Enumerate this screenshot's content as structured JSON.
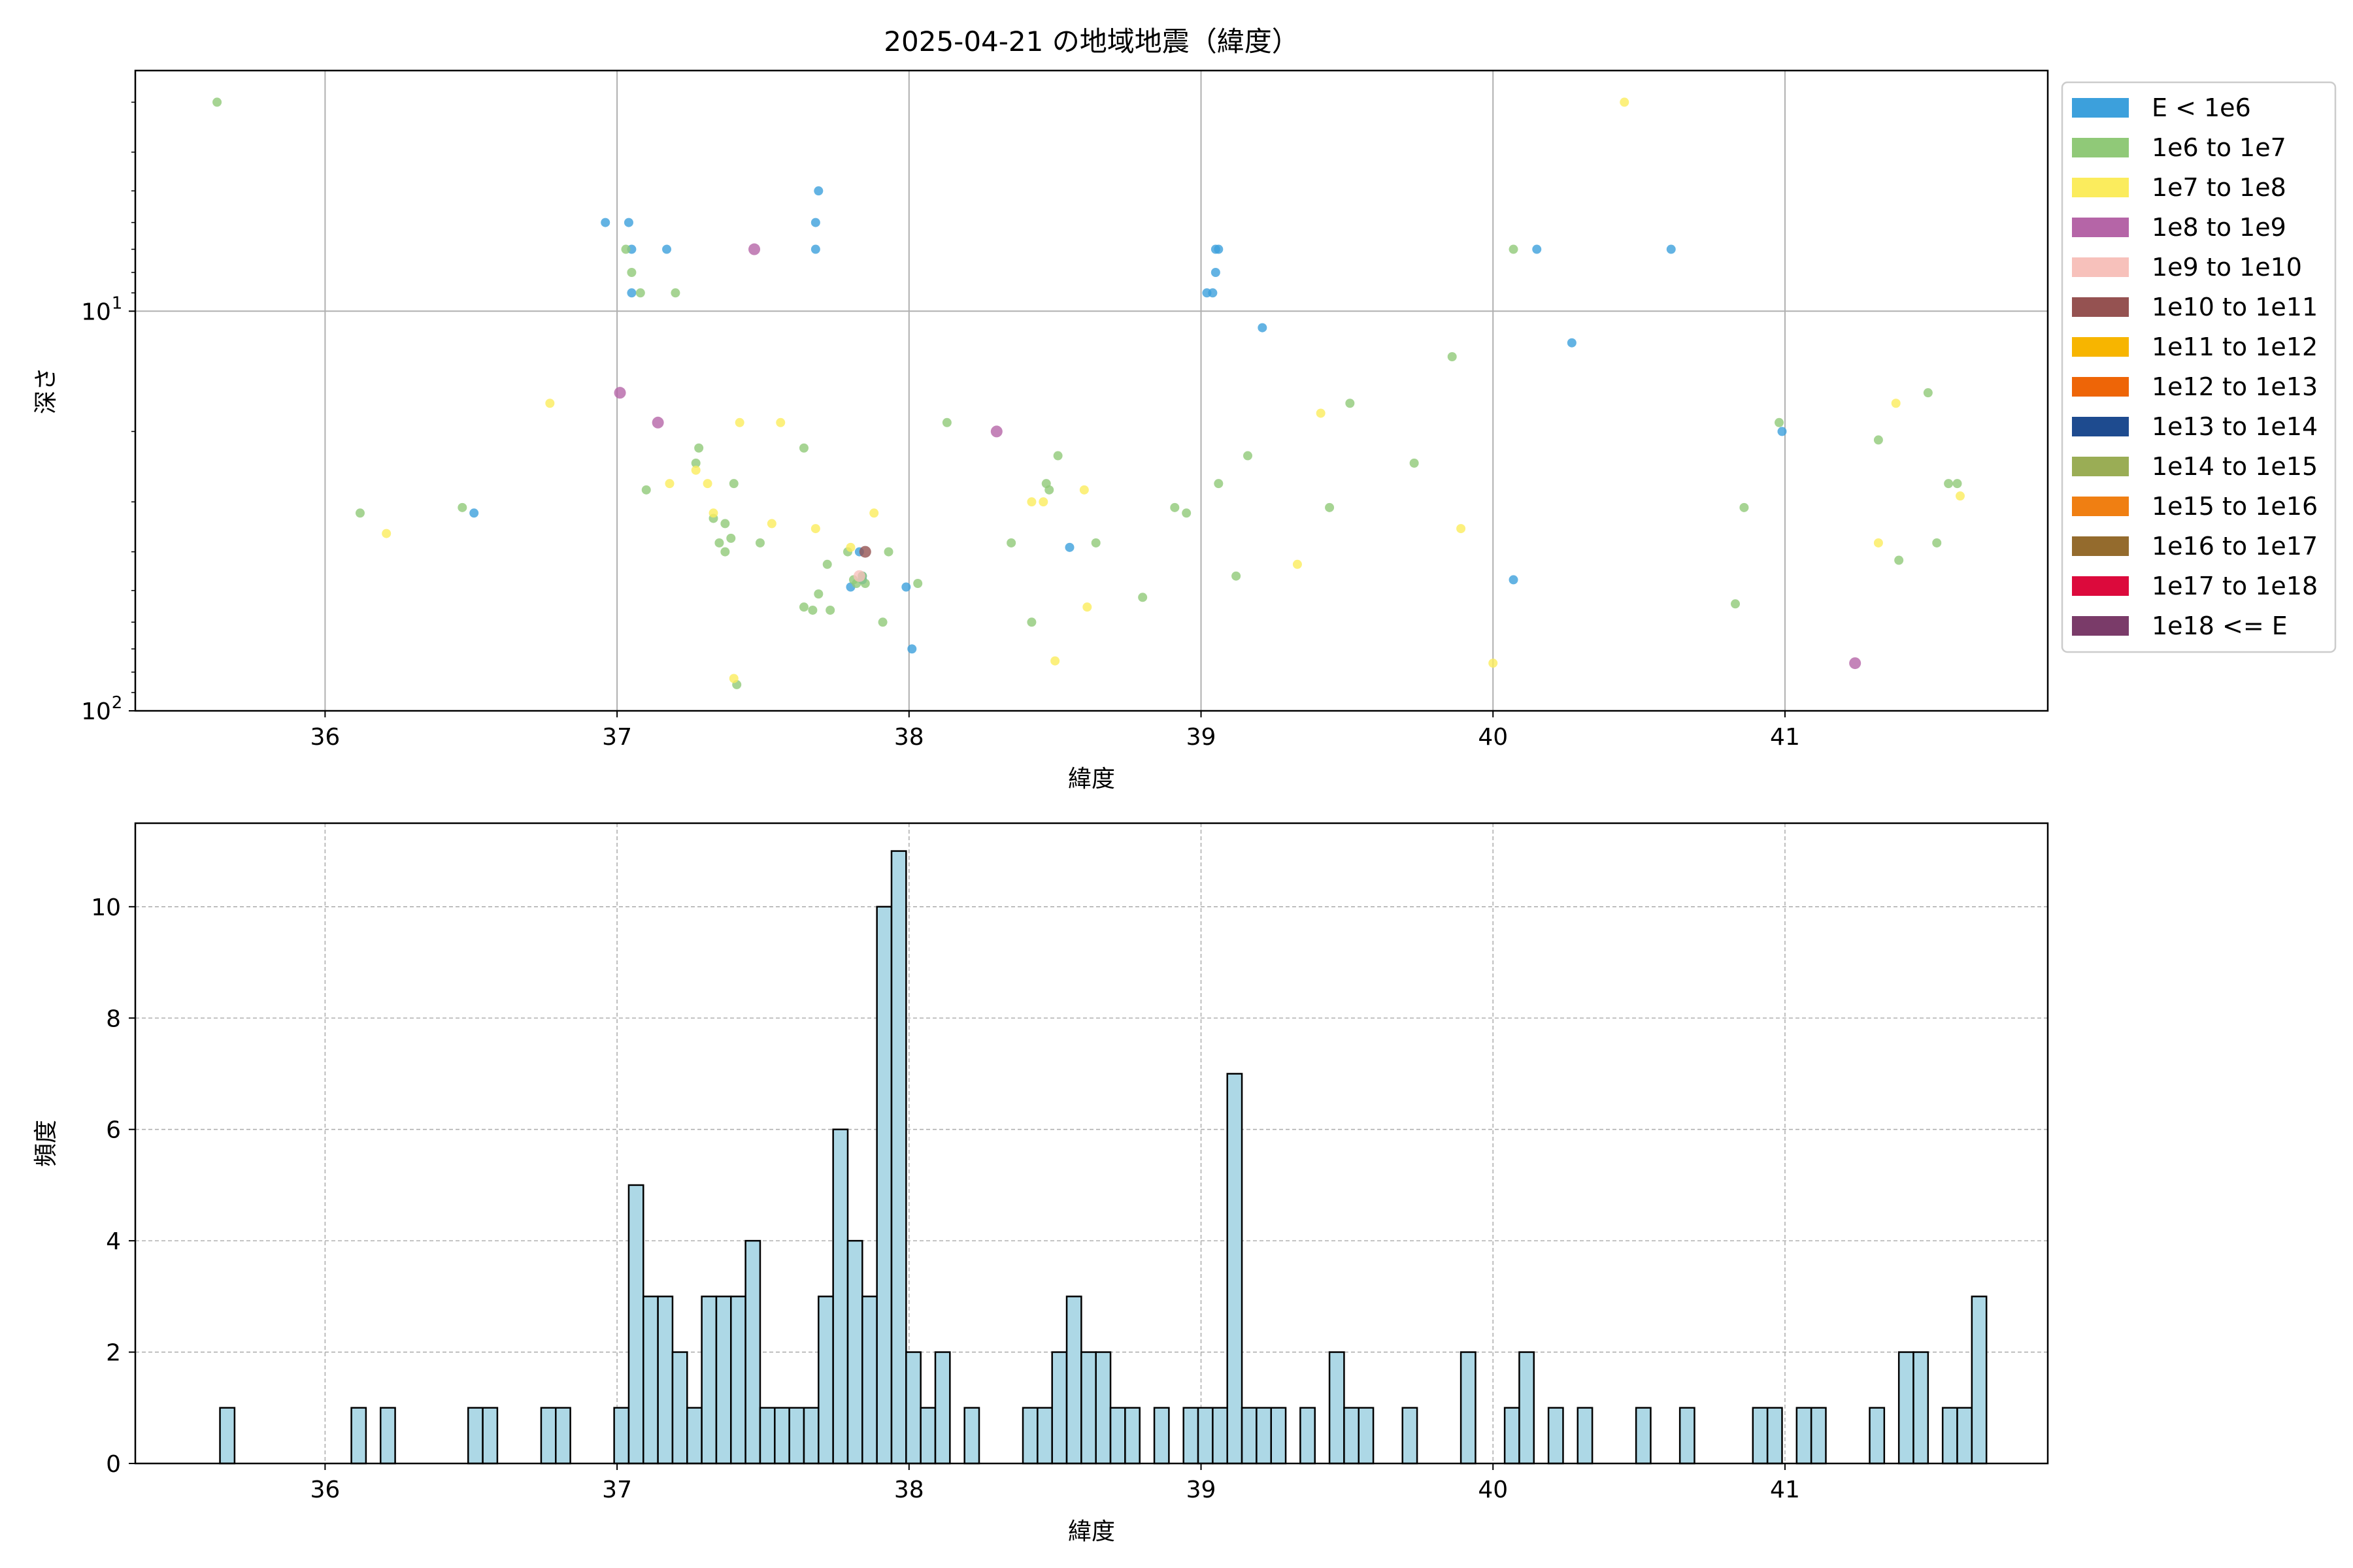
{
  "figure": {
    "title": "2025-04-21 の地域地震（緯度）"
  },
  "chart_data": [
    {
      "type": "scatter",
      "title": "2025-04-21 の地域地震（緯度）",
      "xlabel": "緯度",
      "ylabel": "深さ",
      "x_scale": "linear",
      "y_scale": "log",
      "y_inverted": true,
      "xlim": [
        35.35,
        41.9
      ],
      "ylim": [
        100,
        2.5
      ],
      "x_ticks": [
        36,
        37,
        38,
        39,
        40,
        41
      ],
      "y_ticks": [
        {
          "value": 10,
          "label": "10^1"
        },
        {
          "value": 100,
          "label": "10^2"
        }
      ],
      "grid": true,
      "legend_position": "outside-right",
      "legend": [
        {
          "label": "E < 1e6",
          "color": "#3ca0dc"
        },
        {
          "label": "1e6 to 1e7",
          "color": "#90c978"
        },
        {
          "label": "1e7 to 1e8",
          "color": "#fbec5d"
        },
        {
          "label": "1e8 to 1e9",
          "color": "#b565a7"
        },
        {
          "label": "1e9 to 1e10",
          "color": "#f7c1bb"
        },
        {
          "label": "1e10 to 1e11",
          "color": "#955251"
        },
        {
          "label": "1e11 to 1e12",
          "color": "#f7b500"
        },
        {
          "label": "1e12 to 1e13",
          "color": "#ee6507"
        },
        {
          "label": "1e13 to 1e14",
          "color": "#1e4b8f"
        },
        {
          "label": "1e14 to 1e15",
          "color": "#9aad55"
        },
        {
          "label": "1e15 to 1e16",
          "color": "#f07f12"
        },
        {
          "label": "1e16 to 1e17",
          "color": "#946b2d"
        },
        {
          "label": "1e17 to 1e18",
          "color": "#dc0a3c"
        },
        {
          "label": "1e18 <= E",
          "color": "#7a3b69"
        }
      ],
      "series": [
        {
          "class": 0,
          "points": [
            [
              36.96,
              6
            ],
            [
              37.04,
              6
            ],
            [
              37.05,
              7
            ],
            [
              37.05,
              9
            ],
            [
              37.17,
              7
            ],
            [
              36.51,
              32
            ],
            [
              37.69,
              5
            ],
            [
              37.68,
              6
            ],
            [
              37.68,
              7
            ],
            [
              37.83,
              40
            ],
            [
              37.84,
              46
            ],
            [
              37.84,
              47
            ],
            [
              37.8,
              49
            ],
            [
              37.99,
              49
            ],
            [
              38.01,
              70
            ],
            [
              38.55,
              39
            ],
            [
              39.02,
              9
            ],
            [
              39.04,
              9
            ],
            [
              39.05,
              7
            ],
            [
              39.06,
              7
            ],
            [
              39.05,
              8
            ],
            [
              39.21,
              11
            ],
            [
              40.07,
              47
            ],
            [
              40.15,
              7
            ],
            [
              40.27,
              12
            ],
            [
              40.61,
              7
            ],
            [
              40.99,
              20
            ]
          ]
        },
        {
          "class": 1,
          "points": [
            [
              35.63,
              3
            ],
            [
              37.03,
              7
            ],
            [
              37.05,
              8
            ],
            [
              37.08,
              9
            ],
            [
              37.2,
              9
            ],
            [
              37.1,
              28
            ],
            [
              37.28,
              22
            ],
            [
              37.27,
              24
            ],
            [
              37.33,
              33
            ],
            [
              37.35,
              38
            ],
            [
              37.37,
              34
            ],
            [
              37.37,
              40
            ],
            [
              37.39,
              37
            ],
            [
              37.4,
              27
            ],
            [
              37.41,
              86
            ],
            [
              37.49,
              38
            ],
            [
              37.64,
              22
            ],
            [
              37.64,
              55
            ],
            [
              37.67,
              56
            ],
            [
              37.69,
              51
            ],
            [
              37.72,
              43
            ],
            [
              37.73,
              56
            ],
            [
              37.79,
              40
            ],
            [
              37.81,
              47
            ],
            [
              37.82,
              48
            ],
            [
              37.84,
              46
            ],
            [
              37.85,
              48
            ],
            [
              37.91,
              60
            ],
            [
              37.93,
              40
            ],
            [
              38.03,
              48
            ],
            [
              38.13,
              19
            ],
            [
              38.35,
              38
            ],
            [
              38.42,
              60
            ],
            [
              38.47,
              27
            ],
            [
              38.48,
              28
            ],
            [
              38.51,
              23
            ],
            [
              38.64,
              38
            ],
            [
              38.8,
              52
            ],
            [
              38.91,
              31
            ],
            [
              38.95,
              32
            ],
            [
              39.06,
              27
            ],
            [
              39.12,
              46
            ],
            [
              39.16,
              23
            ],
            [
              39.44,
              31
            ],
            [
              39.51,
              17
            ],
            [
              39.73,
              24
            ],
            [
              39.86,
              13
            ],
            [
              40.07,
              7
            ],
            [
              40.83,
              54
            ],
            [
              40.86,
              31
            ],
            [
              40.98,
              19
            ],
            [
              41.32,
              21
            ],
            [
              41.39,
              42
            ],
            [
              41.49,
              16
            ],
            [
              41.52,
              38
            ],
            [
              41.56,
              27
            ],
            [
              41.59,
              27
            ],
            [
              36.12,
              32
            ],
            [
              36.47,
              31
            ]
          ]
        },
        {
          "class": 2,
          "points": [
            [
              36.21,
              36
            ],
            [
              36.77,
              17
            ],
            [
              37.18,
              27
            ],
            [
              37.27,
              25
            ],
            [
              37.31,
              27
            ],
            [
              37.33,
              32
            ],
            [
              37.42,
              19
            ],
            [
              37.4,
              83
            ],
            [
              37.56,
              19
            ],
            [
              37.53,
              34
            ],
            [
              37.68,
              35
            ],
            [
              37.8,
              39
            ],
            [
              37.88,
              32
            ],
            [
              38.42,
              30
            ],
            [
              38.46,
              30
            ],
            [
              38.5,
              75
            ],
            [
              38.6,
              28
            ],
            [
              38.61,
              55
            ],
            [
              39.33,
              43
            ],
            [
              39.41,
              18
            ],
            [
              39.89,
              35
            ],
            [
              40.0,
              76
            ],
            [
              40.45,
              3
            ],
            [
              41.32,
              38
            ],
            [
              41.38,
              17
            ],
            [
              41.6,
              29
            ]
          ]
        },
        {
          "class": 3,
          "points": [
            [
              37.47,
              7
            ],
            [
              37.01,
              16
            ],
            [
              37.14,
              19
            ],
            [
              38.3,
              20
            ],
            [
              41.24,
              76
            ]
          ]
        },
        {
          "class": 4,
          "points": [
            [
              37.83,
              46
            ]
          ]
        },
        {
          "class": 5,
          "points": [
            [
              37.85,
              40
            ]
          ]
        }
      ]
    },
    {
      "type": "bar",
      "subtype": "histogram",
      "xlabel": "緯度",
      "ylabel": "頻度",
      "xlim": [
        35.35,
        41.9
      ],
      "ylim": [
        0,
        11.5
      ],
      "x_ticks": [
        36,
        37,
        38,
        39,
        40,
        41
      ],
      "y_ticks": [
        0,
        2,
        4,
        6,
        8,
        10
      ],
      "grid": true,
      "bin_start": 35.64,
      "bin_width": 0.05,
      "bar_color": "#add8e6",
      "edge_color": "#000000",
      "counts": [
        1,
        0,
        0,
        0,
        0,
        0,
        0,
        0,
        0,
        1,
        0,
        1,
        0,
        0,
        0,
        0,
        0,
        1,
        1,
        0,
        0,
        0,
        1,
        1,
        0,
        0,
        0,
        1,
        5,
        3,
        3,
        2,
        1,
        3,
        3,
        3,
        4,
        1,
        1,
        1,
        1,
        3,
        6,
        4,
        3,
        10,
        11,
        2,
        1,
        2,
        0,
        1,
        0,
        0,
        0,
        1,
        1,
        2,
        3,
        2,
        2,
        1,
        1,
        0,
        1,
        0,
        1,
        1,
        1,
        7,
        1,
        1,
        1,
        0,
        1,
        0,
        2,
        1,
        1,
        0,
        0,
        1,
        0,
        0,
        0,
        2,
        0,
        0,
        1,
        2,
        0,
        1,
        0,
        1,
        0,
        0,
        0,
        1,
        0,
        0,
        1,
        0,
        0,
        0,
        0,
        1,
        1,
        0,
        1,
        1,
        0,
        0,
        0,
        1,
        0,
        2,
        2,
        0,
        1,
        1,
        3
      ]
    }
  ]
}
